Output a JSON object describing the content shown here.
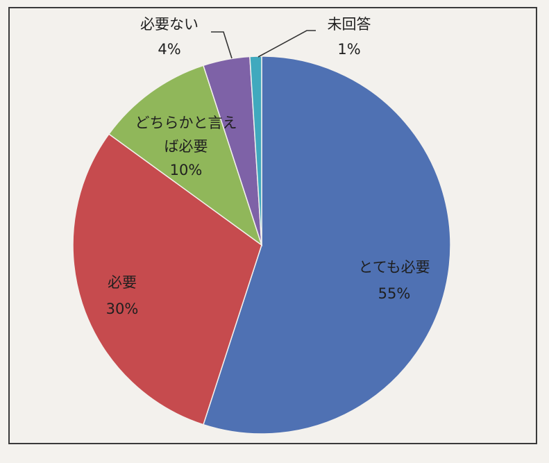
{
  "chart_data": {
    "type": "pie",
    "title": "",
    "slices": [
      {
        "name": "とても必要",
        "label_lines": [
          "とても必要",
          "55%"
        ],
        "value": 55,
        "color": "#4f71b3"
      },
      {
        "name": "必要",
        "label_lines": [
          "必要",
          "30%"
        ],
        "value": 30,
        "color": "#c64b4e"
      },
      {
        "name": "どちらかと言えば必要",
        "label_lines": [
          "どちらかと言え",
          "ば必要",
          "10%"
        ],
        "value": 10,
        "color": "#90b75a"
      },
      {
        "name": "必要ない",
        "label_lines": [
          "必要ない",
          "4%"
        ],
        "value": 4,
        "color": "#7e62a7"
      },
      {
        "name": "未回答",
        "label_lines": [
          "未回答",
          "1%"
        ],
        "value": 1,
        "color": "#40a9be"
      }
    ],
    "start": "12 o'clock",
    "direction": "clockwise"
  }
}
